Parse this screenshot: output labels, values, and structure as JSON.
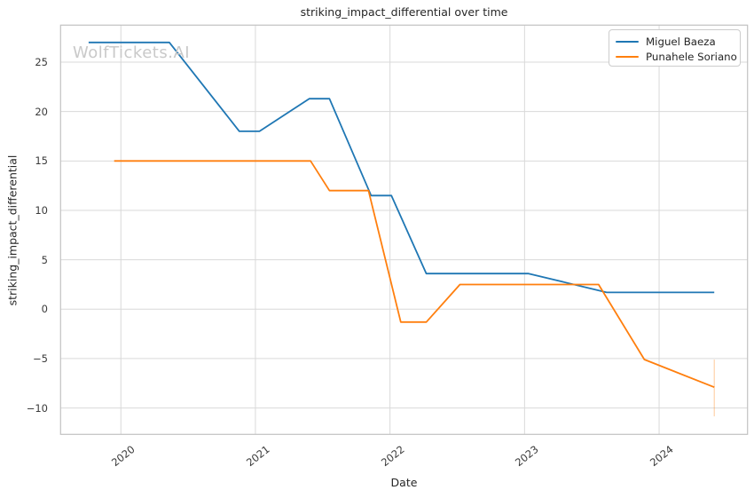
{
  "watermark": {
    "text": "WolfTickets.AI",
    "color": "#c9c9c9"
  },
  "chart_data": {
    "type": "line",
    "title": "striking_impact_differential over time",
    "xlabel": "Date",
    "ylabel": "striking_impact_differential",
    "x_unit": "decimal_year",
    "xlim": [
      2019.552,
      2024.657
    ],
    "ylim": [
      -12.67,
      28.75
    ],
    "grid": true,
    "grid_color": "#d9d9d9",
    "spine_color": "#c2c2c2",
    "tick_text_color": "#3a3a3a",
    "x_ticks": [
      {
        "value": 2020,
        "label": "2020"
      },
      {
        "value": 2021,
        "label": "2021"
      },
      {
        "value": 2022,
        "label": "2022"
      },
      {
        "value": 2023,
        "label": "2023"
      },
      {
        "value": 2024,
        "label": "2024"
      }
    ],
    "y_ticks": [
      {
        "value": -10,
        "label": "−10"
      },
      {
        "value": -5,
        "label": "−5"
      },
      {
        "value": 0,
        "label": "0"
      },
      {
        "value": 5,
        "label": "5"
      },
      {
        "value": 10,
        "label": "10"
      },
      {
        "value": 15,
        "label": "15"
      },
      {
        "value": 20,
        "label": "20"
      },
      {
        "value": 25,
        "label": "25"
      }
    ],
    "legend_position": "upper right",
    "series": [
      {
        "name": "Miguel Baeza",
        "color": "#1f77b4",
        "points": [
          [
            2019.76,
            27.0
          ],
          [
            2020.36,
            27.0
          ],
          [
            2020.88,
            18.0
          ],
          [
            2021.03,
            18.0
          ],
          [
            2021.4,
            21.3
          ],
          [
            2021.55,
            21.3
          ],
          [
            2021.86,
            11.5
          ],
          [
            2022.01,
            11.5
          ],
          [
            2022.27,
            3.6
          ],
          [
            2023.03,
            3.6
          ],
          [
            2023.61,
            1.7
          ],
          [
            2024.41,
            1.7
          ]
        ]
      },
      {
        "name": "Punahele Soriano",
        "color": "#ff7f0e",
        "points": [
          [
            2019.95,
            15.0
          ],
          [
            2021.41,
            15.0
          ],
          [
            2021.55,
            12.0
          ],
          [
            2021.84,
            12.0
          ],
          [
            2022.08,
            -1.3
          ],
          [
            2022.27,
            -1.3
          ],
          [
            2022.52,
            2.5
          ],
          [
            2023.55,
            2.5
          ],
          [
            2023.89,
            -5.1
          ],
          [
            2024.41,
            -7.9
          ]
        ],
        "error_bar": {
          "x": 2024.41,
          "from": -5.1,
          "to": -10.85,
          "opacity": 0.35
        }
      }
    ]
  }
}
